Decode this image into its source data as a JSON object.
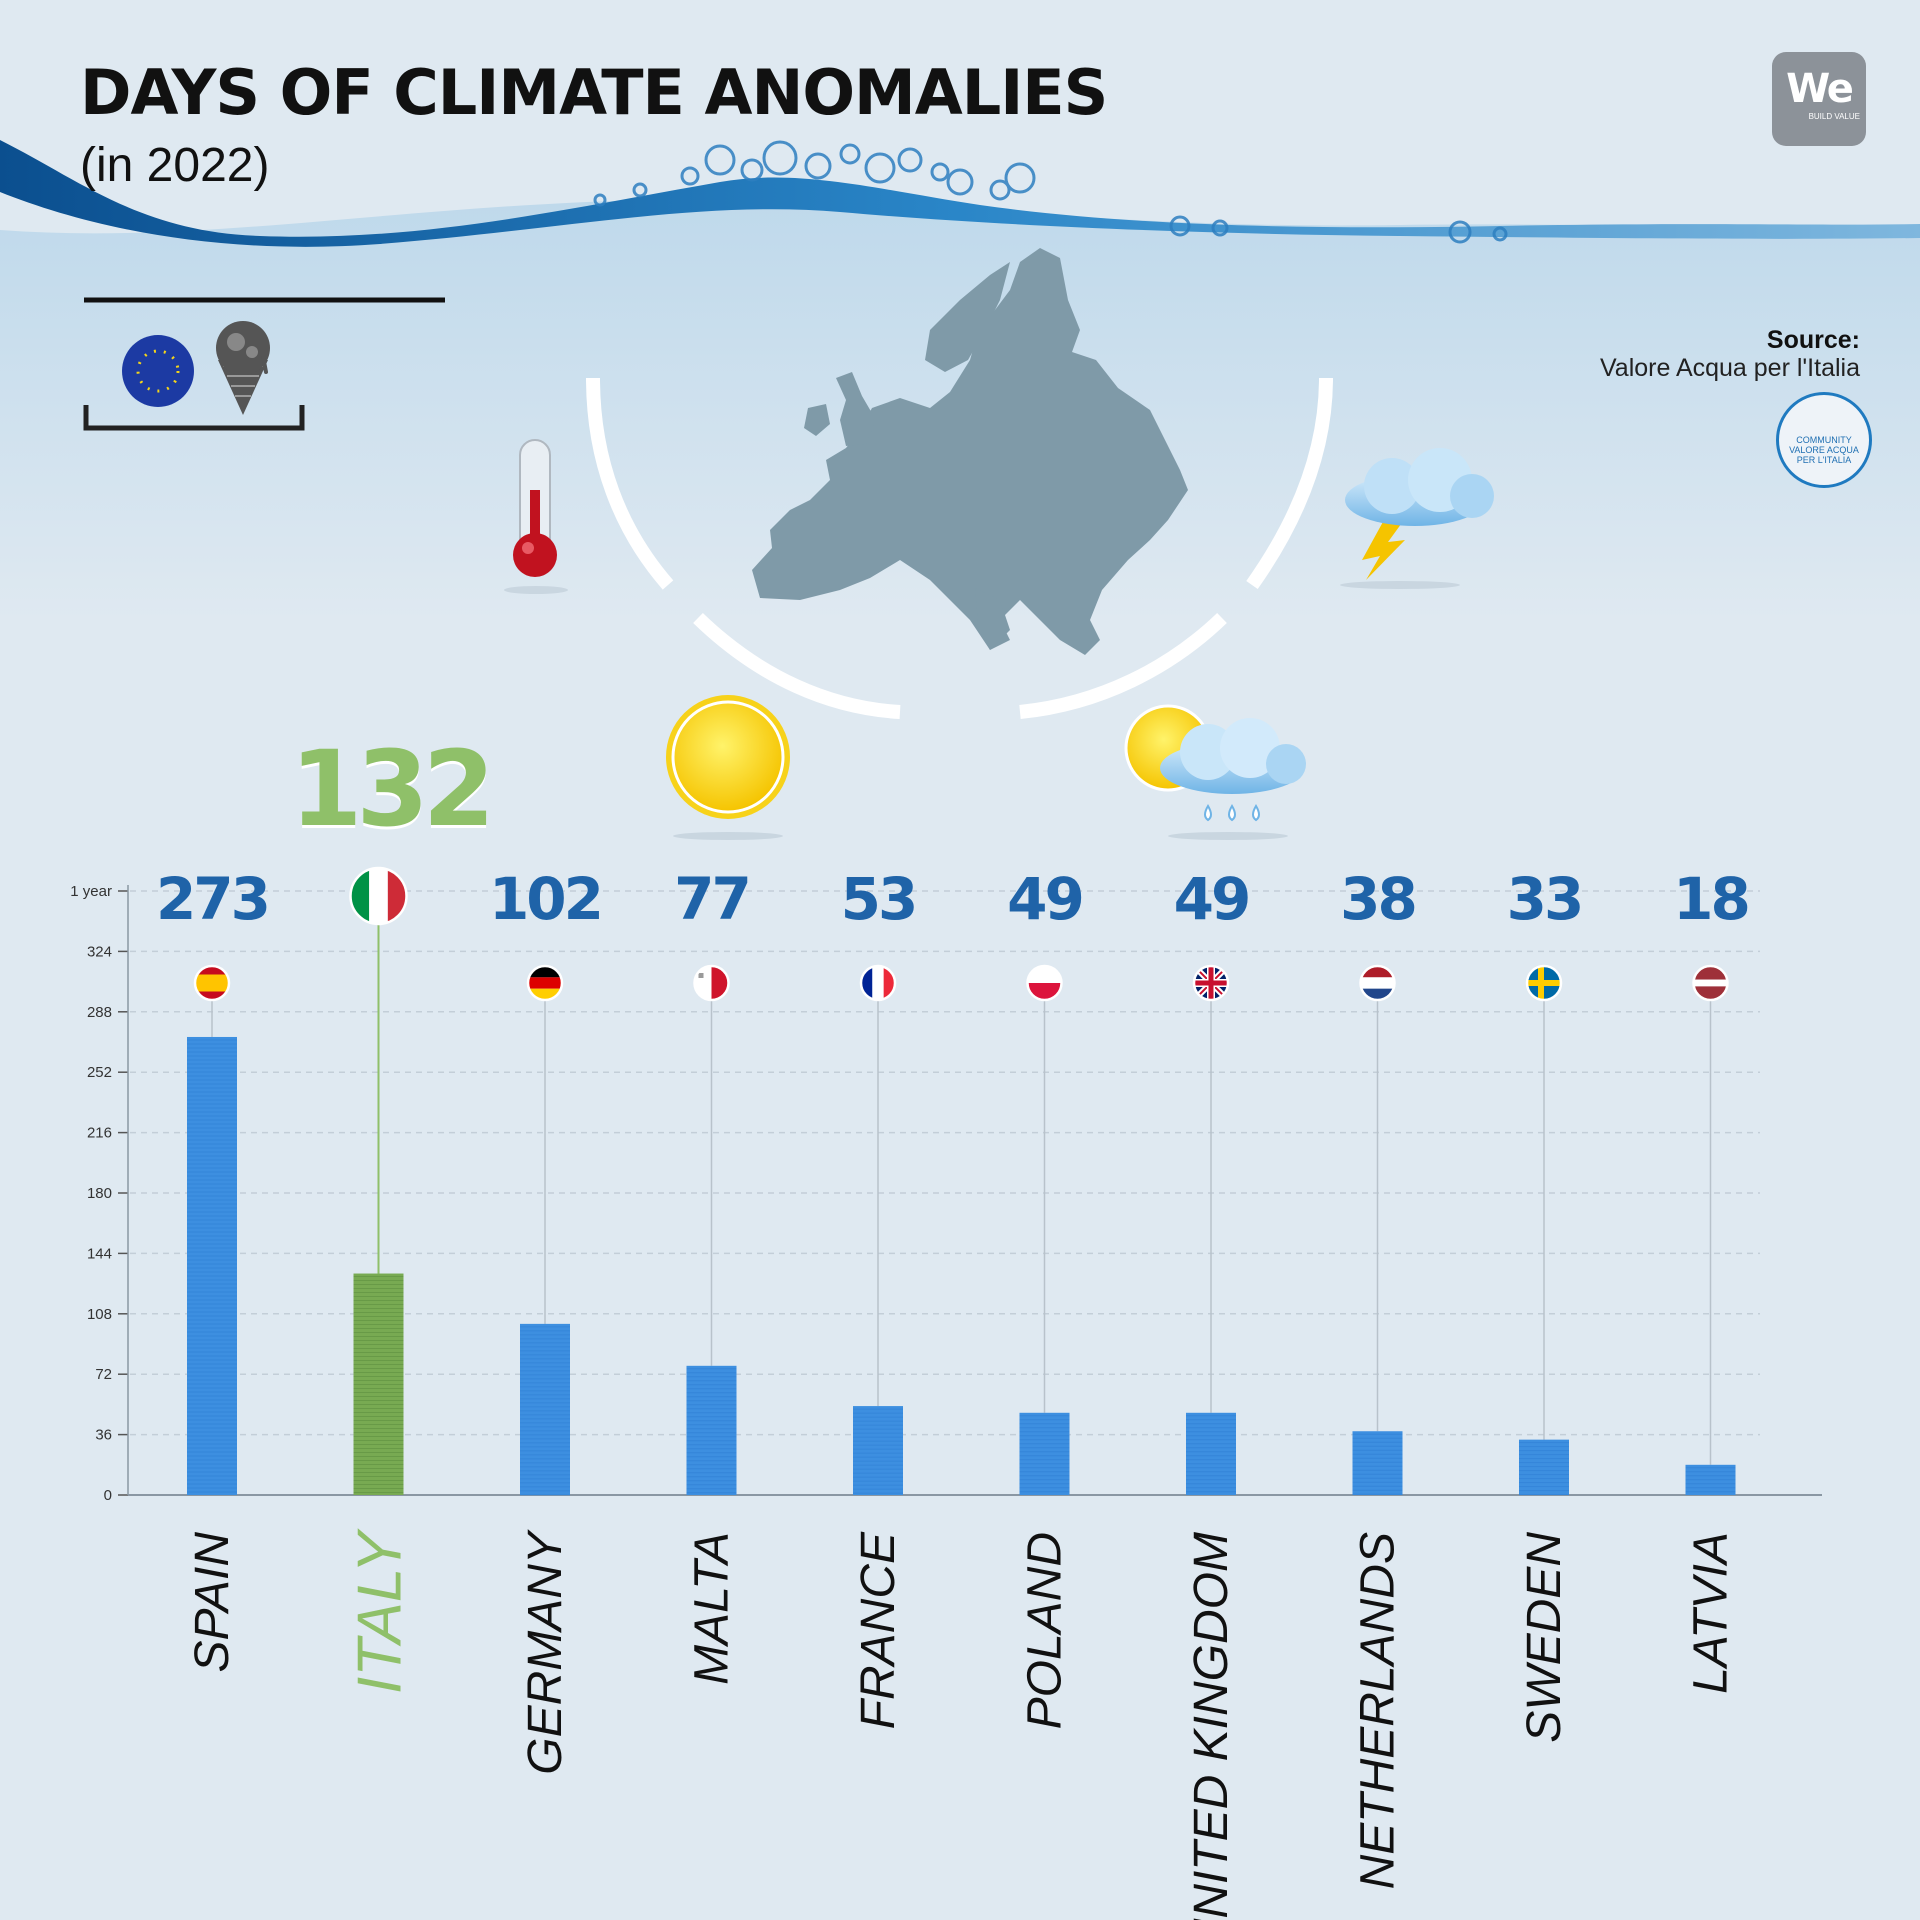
{
  "header": {
    "title": "DAYS OF CLIMATE ANOMALIES",
    "subtitle": "(in 2022)"
  },
  "source": {
    "label": "Source:",
    "name": "Valore Acqua per l'Italia"
  },
  "logos": {
    "brand_main": "We",
    "brand_sub": "BUILD VALUE",
    "community": "COMMUNITY VALORE ACQUA PER L'ITALIA"
  },
  "icons": [
    "eu-flag-icon",
    "melting-ice-cream-icon",
    "thermometer-icon",
    "storm-cloud-icon",
    "sun-icon",
    "sun-cloud-rain-icon",
    "europe-map-icon"
  ],
  "colors": {
    "bar": "#3d8fe0",
    "highlight": "#78aa52",
    "value_text": "#1f63a8",
    "italy_text": "#8fc069",
    "label_text": "#111111"
  },
  "chart_data": {
    "type": "bar",
    "title": "DAYS OF CLIMATE ANOMALIES",
    "subtitle": "(in 2022)",
    "categories": [
      "SPAIN",
      "ITALY",
      "GERMANY",
      "MALTA",
      "FRANCE",
      "POLAND",
      "UNITED KINGDOM",
      "NETHERLANDS",
      "SWEDEN",
      "LATVIA"
    ],
    "values": [
      273,
      132,
      102,
      77,
      53,
      49,
      49,
      38,
      33,
      18
    ],
    "value_labels": [
      "273",
      "132",
      "102",
      "77",
      "53",
      "49",
      "49",
      "38",
      "33",
      "18"
    ],
    "highlight": "ITALY",
    "flags": [
      "spain-flag-icon",
      "italy-flag-icon",
      "germany-flag-icon",
      "malta-flag-icon",
      "france-flag-icon",
      "poland-flag-icon",
      "uk-flag-icon",
      "netherlands-flag-icon",
      "sweden-flag-icon",
      "latvia-flag-icon"
    ],
    "y_ticks": [
      "0",
      "36",
      "72",
      "108",
      "144",
      "180",
      "216",
      "252",
      "288",
      "324",
      "1 year"
    ],
    "ylim": [
      0,
      360
    ],
    "grid": true,
    "xlabel": "",
    "ylabel": ""
  }
}
